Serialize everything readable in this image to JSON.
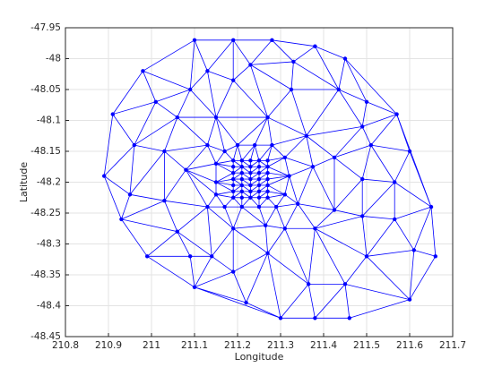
{
  "chart_data": {
    "type": "mesh",
    "xlabel": "Longitude",
    "ylabel": "Latitude",
    "color": "#0000ff",
    "grid": true,
    "xlim": [
      210.8,
      211.7
    ],
    "ylim": [
      -48.45,
      -47.95
    ],
    "xticks": [
      210.8,
      210.9,
      211,
      211.1,
      211.2,
      211.3,
      211.4,
      211.5,
      211.6,
      211.7
    ],
    "yticks": [
      -48.45,
      -48.4,
      -48.35,
      -48.3,
      -48.25,
      -48.2,
      -48.15,
      -48.1,
      -48.05,
      -48,
      -47.95
    ],
    "x": [
      210.89,
      210.91,
      210.98,
      211.1,
      211.19,
      211.28,
      211.38,
      211.45,
      211.57,
      211.6,
      211.65,
      211.66,
      211.6,
      211.46,
      211.38,
      211.3,
      211.22,
      211.1,
      210.99,
      210.93,
      210.96,
      210.95,
      211.01,
      211.03,
      211.03,
      211.06,
      211.09,
      211.13,
      211.09,
      211.06,
      211.08,
      211.14,
      211.19,
      211.19,
      211.23,
      211.325,
      211.33,
      211.435,
      211.49,
      211.5,
      211.51,
      211.425,
      211.49,
      211.565,
      211.565,
      211.49,
      211.61,
      211.5,
      211.45,
      211.365,
      211.27,
      211.31,
      211.38,
      211.425,
      211.375,
      211.36,
      211.27,
      211.15,
      211.13,
      211.13,
      211.19,
      211.265,
      211.34,
      211.15,
      211.15,
      211.15,
      211.17,
      211.2,
      211.24,
      211.28,
      211.31,
      211.32,
      211.31,
      211.29,
      211.25,
      211.21,
      211.17,
      211.19,
      211.19,
      211.19,
      211.19,
      211.19,
      211.19,
      211.19,
      211.21,
      211.21,
      211.21,
      211.21,
      211.21,
      211.21,
      211.21,
      211.23,
      211.23,
      211.23,
      211.23,
      211.23,
      211.23,
      211.23,
      211.25,
      211.25,
      211.25,
      211.25,
      211.25,
      211.25,
      211.25,
      211.27,
      211.27,
      211.27,
      211.27,
      211.27,
      211.27,
      211.27
    ],
    "values": [
      -48.19,
      -48.09,
      -48.02,
      -47.97,
      -47.97,
      -47.97,
      -47.98,
      -48,
      -48.09,
      -48.15,
      -48.24,
      -48.32,
      -48.39,
      -48.42,
      -48.42,
      -48.42,
      -48.395,
      -48.37,
      -48.32,
      -48.26,
      -48.14,
      -48.22,
      -48.07,
      -48.15,
      -48.23,
      -48.28,
      -48.32,
      -48.02,
      -48.05,
      -48.095,
      -48.18,
      -48.32,
      -48.345,
      -48.035,
      -48.01,
      -48.05,
      -48.005,
      -48.05,
      -48.11,
      -48.07,
      -48.14,
      -48.16,
      -48.195,
      -48.2,
      -48.26,
      -48.255,
      -48.31,
      -48.32,
      -48.365,
      -48.365,
      -48.315,
      -48.275,
      -48.275,
      -48.245,
      -48.175,
      -48.125,
      -48.095,
      -48.095,
      -48.14,
      -48.24,
      -48.275,
      -48.27,
      -48.235,
      -48.17,
      -48.2,
      -48.22,
      -48.15,
      -48.14,
      -48.14,
      -48.14,
      -48.16,
      -48.19,
      -48.22,
      -48.24,
      -48.24,
      -48.24,
      -48.24,
      -48.165,
      -48.175,
      -48.185,
      -48.195,
      -48.205,
      -48.215,
      -48.225,
      -48.165,
      -48.175,
      -48.185,
      -48.195,
      -48.205,
      -48.215,
      -48.225,
      -48.165,
      -48.175,
      -48.185,
      -48.195,
      -48.205,
      -48.215,
      -48.225,
      -48.165,
      -48.175,
      -48.185,
      -48.195,
      -48.205,
      -48.215,
      -48.225,
      -48.165,
      -48.175,
      -48.185,
      -48.195,
      -48.205,
      -48.215,
      -48.225
    ]
  }
}
